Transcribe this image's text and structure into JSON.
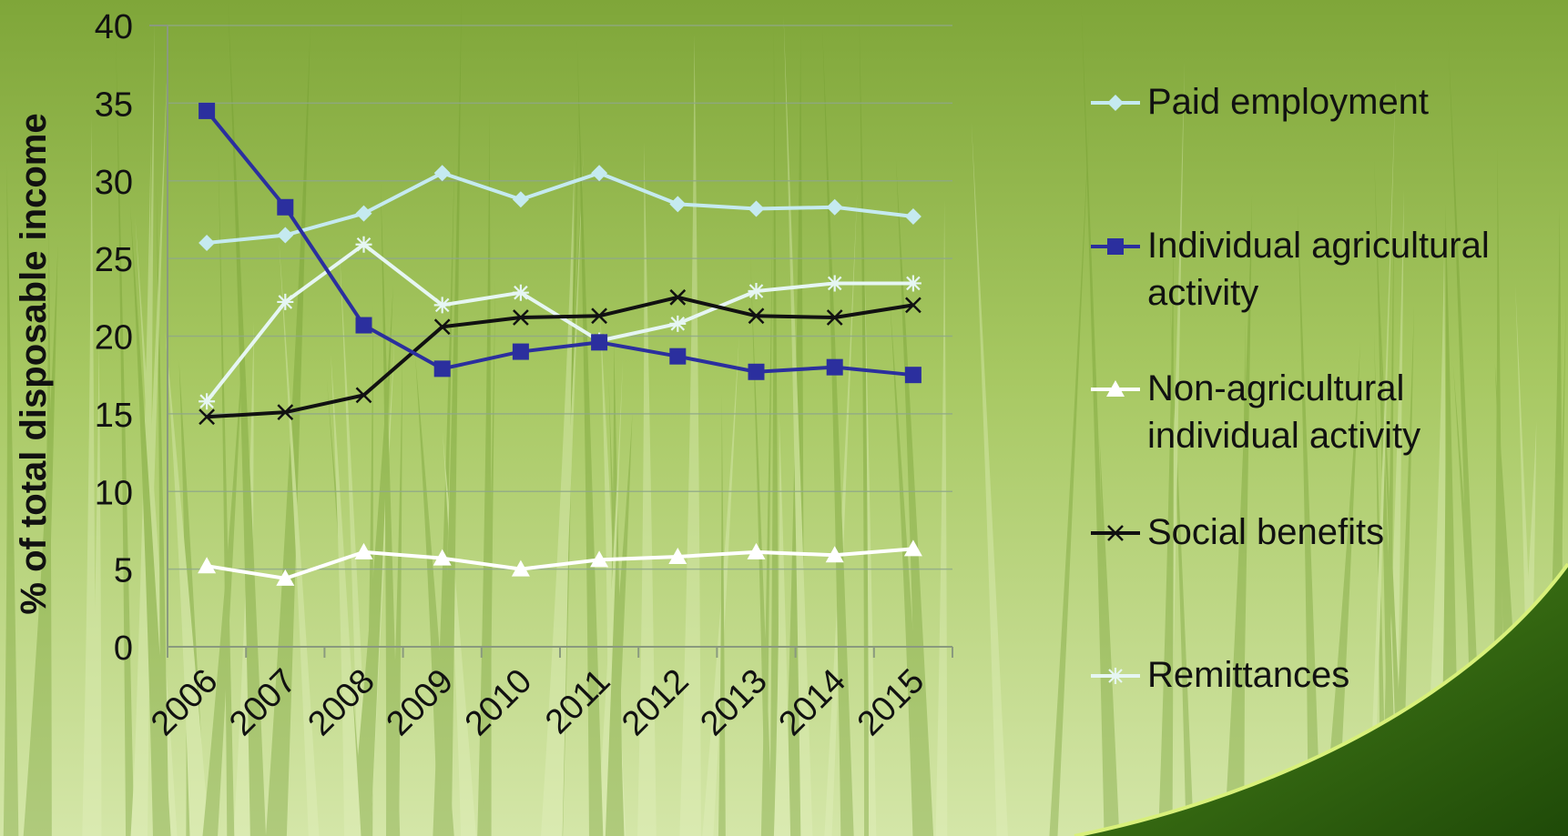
{
  "chart_data": {
    "type": "line",
    "title": "",
    "xlabel": "",
    "ylabel": "% of total disposable income",
    "ylim": [
      0,
      40
    ],
    "yticks": [
      0,
      5,
      10,
      15,
      20,
      25,
      30,
      35,
      40
    ],
    "grid": "horizontal",
    "legend_placement": "right",
    "categories": [
      "2006",
      "2007",
      "2008",
      "2009",
      "2010",
      "2011",
      "2012",
      "2013",
      "2014",
      "2015"
    ],
    "series": [
      {
        "name": "Paid employment",
        "marker": "diamond",
        "color": "#c5eaf0",
        "values": [
          26.0,
          26.5,
          27.9,
          30.5,
          28.8,
          30.5,
          28.5,
          28.2,
          28.3,
          27.7
        ]
      },
      {
        "name": "Individual agricultural activity",
        "marker": "square",
        "color": "#2b2f9e",
        "values": [
          34.5,
          28.3,
          20.7,
          17.9,
          19.0,
          19.6,
          18.7,
          17.7,
          18.0,
          17.5
        ]
      },
      {
        "name": "Non-agricultural individual activity",
        "marker": "triangle",
        "color": "#ffffff",
        "values": [
          5.2,
          4.4,
          6.1,
          5.7,
          5.0,
          5.6,
          5.8,
          6.1,
          5.9,
          6.3
        ]
      },
      {
        "name": "Social benefits",
        "marker": "x",
        "color": "#111111",
        "values": [
          14.8,
          15.1,
          16.2,
          20.6,
          21.2,
          21.3,
          22.5,
          21.3,
          21.2,
          22.0
        ]
      },
      {
        "name": "Remittances",
        "marker": "star",
        "color": "#e6f6f3",
        "values": [
          15.8,
          22.2,
          25.9,
          22.0,
          22.8,
          19.7,
          20.8,
          22.9,
          23.4,
          23.4
        ]
      }
    ]
  }
}
